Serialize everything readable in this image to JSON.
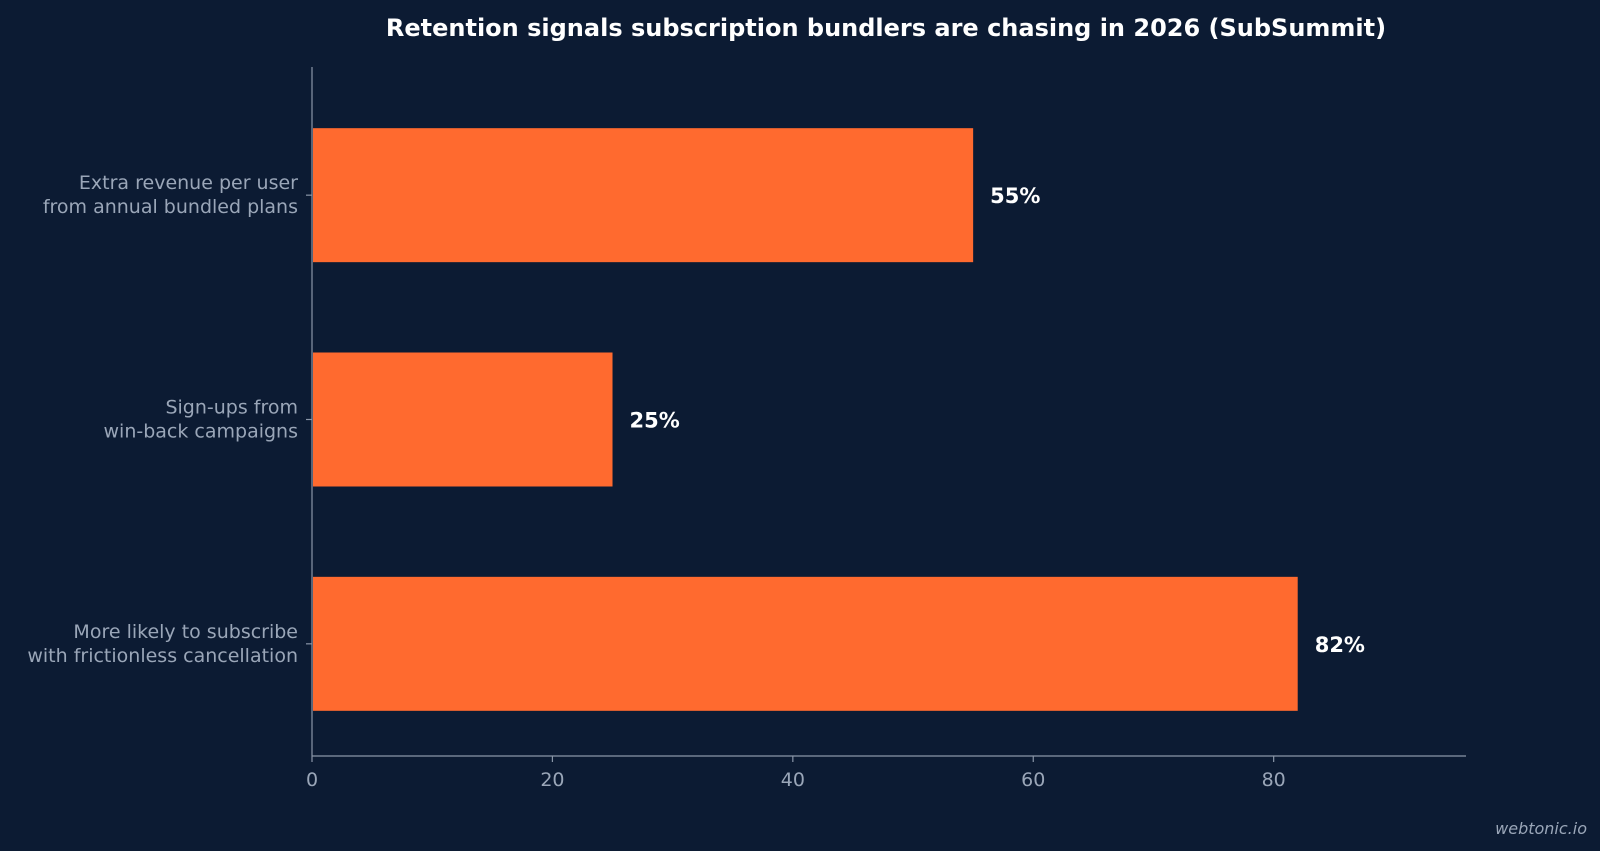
{
  "chart_data": {
    "type": "bar",
    "orientation": "horizontal",
    "title": "Retention signals subscription bundlers are chasing in 2026 (SubSummit)",
    "categories": [
      [
        "Extra revenue per user",
        "from annual bundled plans"
      ],
      [
        "Sign-ups from",
        "win-back campaigns"
      ],
      [
        "More likely to subscribe",
        "with frictionless cancellation"
      ]
    ],
    "values": [
      55,
      25,
      82
    ],
    "data_labels": [
      "55%",
      "25%",
      "82%"
    ],
    "xlim": [
      0,
      96
    ],
    "x_ticks": [
      0,
      20,
      40,
      60,
      80
    ],
    "xlabel": "",
    "ylabel": "",
    "grid": false,
    "bar_color": "#ff6a2f"
  },
  "watermark": "webtonic.io",
  "colors": {
    "background": "#0c1b33",
    "axis": "#8a96a8",
    "muted_text": "#9aa6b8",
    "text": "#ffffff"
  }
}
